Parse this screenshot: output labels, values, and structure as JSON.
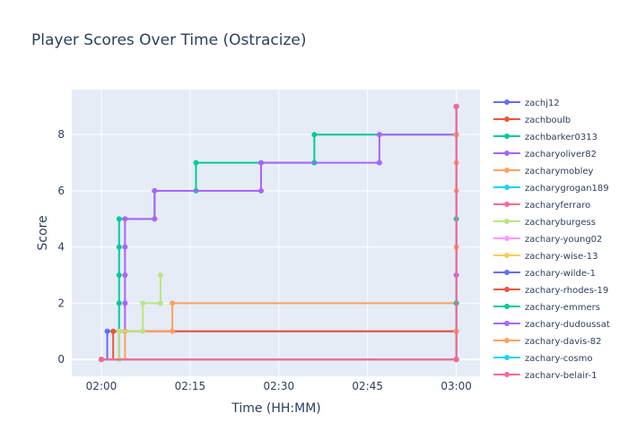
{
  "chart_data": {
    "type": "line",
    "line_shape": "step",
    "markers": true,
    "title": "Player Scores Over Time (Ostracize)",
    "xlabel": "Time (HH:MM)",
    "ylabel": "Score",
    "xlim": [
      "01:55",
      "03:04"
    ],
    "ylim": [
      -0.6,
      9.6
    ],
    "x_ticks": [
      "02:00",
      "02:15",
      "02:30",
      "02:45",
      "03:00"
    ],
    "y_ticks": [
      0,
      2,
      4,
      6,
      8
    ],
    "grid": true,
    "legend_position": "right",
    "legend_scrollable": true,
    "plot_background": "#e5ecf6",
    "series": [
      {
        "name": "zachj12",
        "color": "#636efa",
        "points": [
          [
            "02:00",
            0
          ],
          [
            "02:01",
            1
          ],
          [
            "03:00",
            1
          ],
          [
            "03:00",
            9
          ]
        ]
      },
      {
        "name": "zachboulb",
        "color": "#EF553B",
        "points": [
          [
            "02:00",
            0
          ],
          [
            "02:02",
            1
          ],
          [
            "03:00",
            1
          ],
          [
            "03:00",
            9
          ]
        ]
      },
      {
        "name": "zachbarker0313",
        "color": "#00cc96",
        "points": [
          [
            "02:00",
            0
          ],
          [
            "02:03",
            1
          ],
          [
            "02:03",
            2
          ],
          [
            "02:03",
            3
          ],
          [
            "02:03",
            4
          ],
          [
            "02:03",
            5
          ],
          [
            "02:09",
            5
          ],
          [
            "02:09",
            6
          ],
          [
            "02:16",
            6
          ],
          [
            "02:16",
            7
          ],
          [
            "02:36",
            7
          ],
          [
            "02:36",
            8
          ],
          [
            "03:00",
            8
          ],
          [
            "03:00",
            9
          ]
        ]
      },
      {
        "name": "zacharyoliver82",
        "color": "#ab63fa",
        "points": [
          [
            "02:00",
            0
          ],
          [
            "02:03",
            1
          ],
          [
            "02:04",
            2
          ],
          [
            "02:04",
            3
          ],
          [
            "02:04",
            4
          ],
          [
            "02:04",
            5
          ],
          [
            "02:09",
            5
          ],
          [
            "02:09",
            6
          ],
          [
            "02:27",
            6
          ],
          [
            "02:27",
            7
          ],
          [
            "02:47",
            7
          ],
          [
            "02:47",
            8
          ],
          [
            "03:00",
            8
          ],
          [
            "03:00",
            9
          ]
        ]
      },
      {
        "name": "zacharymobley",
        "color": "#FFA15A",
        "points": [
          [
            "02:00",
            0
          ],
          [
            "02:04",
            1
          ],
          [
            "02:12",
            1
          ],
          [
            "02:12",
            2
          ],
          [
            "03:00",
            2
          ],
          [
            "03:00",
            4
          ],
          [
            "03:00",
            6
          ],
          [
            "03:00",
            7
          ],
          [
            "03:00",
            8
          ],
          [
            "03:00",
            9
          ]
        ]
      },
      {
        "name": "zacharygrogan189",
        "color": "#19d3f3",
        "points": [
          [
            "02:00",
            0
          ],
          [
            "03:00",
            0
          ],
          [
            "03:00",
            9
          ]
        ]
      },
      {
        "name": "zacharyferraro",
        "color": "#FF6692",
        "points": [
          [
            "02:00",
            0
          ],
          [
            "03:00",
            0
          ],
          [
            "03:00",
            9
          ]
        ]
      },
      {
        "name": "zacharyburgess",
        "color": "#B6E880",
        "points": [
          [
            "02:00",
            0
          ],
          [
            "02:03",
            0
          ],
          [
            "02:03",
            1
          ],
          [
            "02:07",
            1
          ],
          [
            "02:07",
            2
          ],
          [
            "02:10",
            2
          ],
          [
            "02:10",
            3
          ]
        ]
      },
      {
        "name": "zachary-young02",
        "color": "#FF97FF",
        "points": [
          [
            "02:00",
            0
          ],
          [
            "03:00",
            0
          ],
          [
            "03:00",
            9
          ]
        ]
      },
      {
        "name": "zachary-wise-13",
        "color": "#FECB52",
        "points": [
          [
            "02:00",
            0
          ],
          [
            "03:00",
            0
          ],
          [
            "03:00",
            9
          ]
        ]
      },
      {
        "name": "zachary-wilde-1",
        "color": "#636efa",
        "points": [
          [
            "02:00",
            0
          ],
          [
            "03:00",
            0
          ],
          [
            "03:00",
            9
          ]
        ]
      },
      {
        "name": "zachary-rhodes-19",
        "color": "#EF553B",
        "points": [
          [
            "02:00",
            0
          ],
          [
            "03:00",
            0
          ],
          [
            "03:00",
            9
          ]
        ]
      },
      {
        "name": "zachary-emmers",
        "color": "#00cc96",
        "points": [
          [
            "02:00",
            0
          ],
          [
            "03:00",
            0
          ],
          [
            "03:00",
            2
          ],
          [
            "03:00",
            5
          ],
          [
            "03:00",
            9
          ]
        ]
      },
      {
        "name": "zachary-dudoussat",
        "color": "#ab63fa",
        "points": [
          [
            "02:00",
            0
          ],
          [
            "03:00",
            0
          ],
          [
            "03:00",
            3
          ],
          [
            "03:00",
            9
          ]
        ]
      },
      {
        "name": "zachary-davis-82",
        "color": "#FFA15A",
        "points": [
          [
            "02:00",
            0
          ],
          [
            "03:00",
            0
          ],
          [
            "03:00",
            1
          ],
          [
            "03:00",
            9
          ]
        ]
      },
      {
        "name": "zachary-cosmo",
        "color": "#19d3f3",
        "points": [
          [
            "02:00",
            0
          ],
          [
            "03:00",
            0
          ],
          [
            "03:00",
            9
          ]
        ]
      },
      {
        "name": "zachary-belair-1",
        "color": "#FF6692",
        "points": [
          [
            "02:00",
            0
          ],
          [
            "03:00",
            0
          ],
          [
            "03:00",
            9
          ]
        ]
      }
    ]
  }
}
